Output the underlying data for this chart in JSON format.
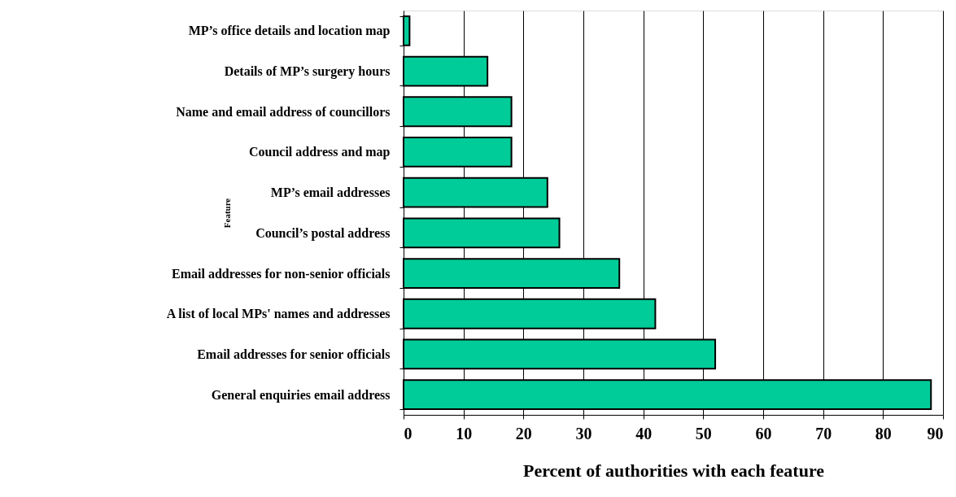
{
  "chart_data": {
    "type": "bar",
    "orientation": "horizontal",
    "xlabel": "Percent of authorities with each feature",
    "ylabel": "Feature",
    "categories": [
      "MP’s office details and location map",
      "Details of MP’s surgery hours",
      "Name and email address of councillors",
      "Council address and map",
      "MP’s email addresses",
      "Council’s postal address",
      "Email addresses for non-senior officials",
      "A list of local MPs' names and addresses",
      "Email addresses for senior officials",
      "General enquiries email address"
    ],
    "values": [
      1,
      14,
      18,
      18,
      24,
      26,
      36,
      42,
      52,
      88
    ],
    "color": "#00cc99",
    "xlim": [
      0,
      90
    ],
    "xticks": [
      0,
      10,
      20,
      30,
      40,
      50,
      60,
      70,
      80,
      90
    ],
    "grid": "x"
  }
}
